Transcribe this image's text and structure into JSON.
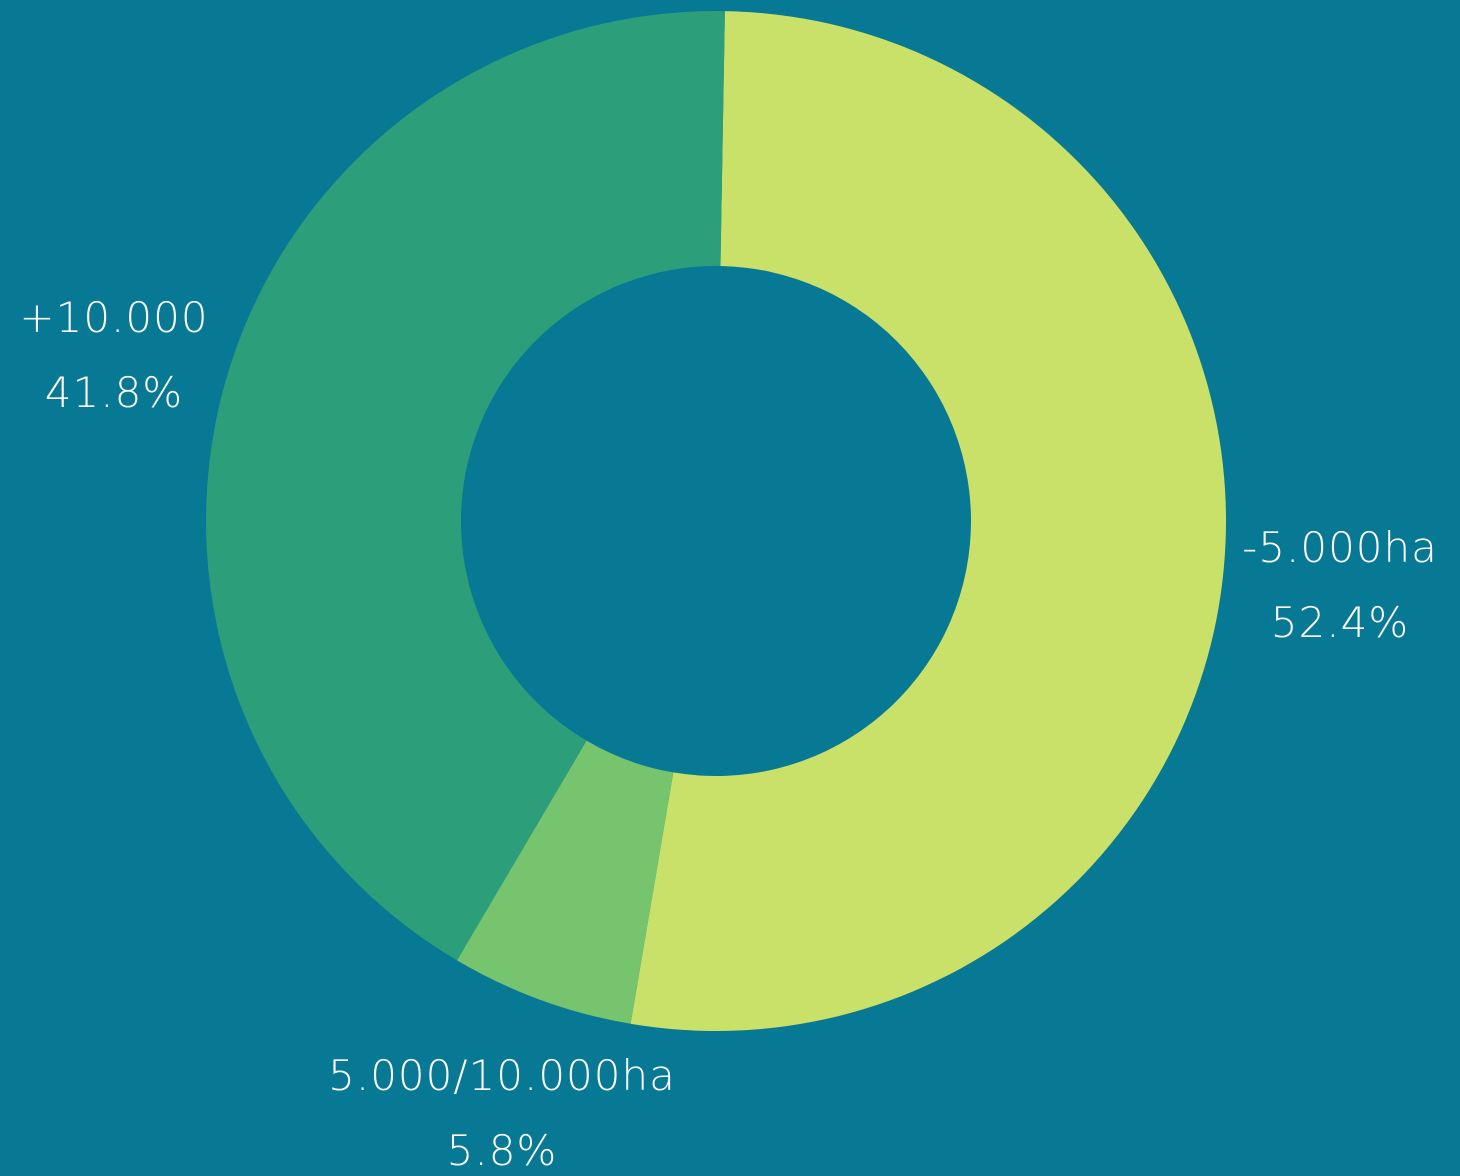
{
  "chart_data": {
    "type": "pie",
    "variant": "donut",
    "title": "",
    "categories": [
      "-5.000ha",
      "5.000/10.000ha",
      "+10.000"
    ],
    "values": [
      52.4,
      5.8,
      41.8
    ],
    "value_labels": [
      "52.4%",
      "5.8%",
      "41.8%"
    ],
    "colors": [
      "#C9E168",
      "#76C46D",
      "#2C9E79"
    ],
    "background": "#087994",
    "label_color": "#FFFFFF",
    "legend": "none",
    "start_angle_deg": 1,
    "direction": "clockwise"
  }
}
